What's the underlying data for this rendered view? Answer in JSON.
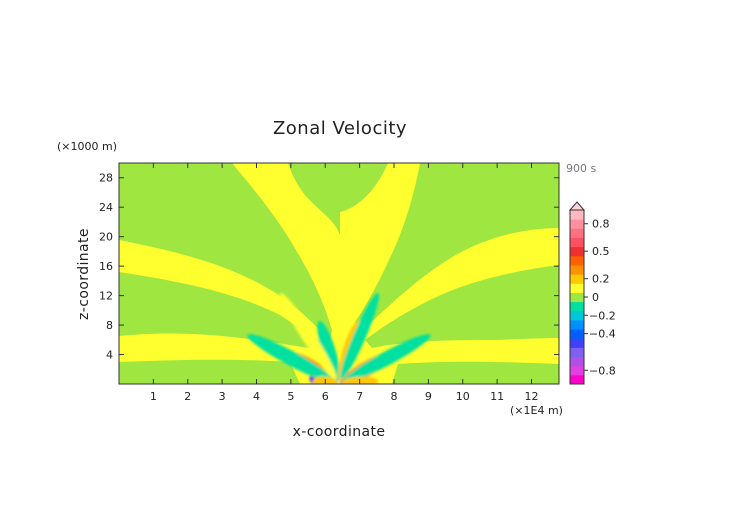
{
  "chart_data": {
    "type": "heatmap",
    "title": "Zonal Velocity",
    "time_label": "900 s",
    "xlabel": "x-coordinate",
    "ylabel": "z-coordinate",
    "x_multiplier": "(×1E4 m)",
    "y_multiplier": "(×1000 m)",
    "x_range": [
      0,
      12.8
    ],
    "y_range": [
      0,
      30
    ],
    "x_ticks": [
      1,
      2,
      3,
      4,
      5,
      6,
      7,
      8,
      9,
      10,
      11,
      12
    ],
    "y_ticks": [
      4,
      8,
      12,
      16,
      20,
      24,
      28
    ],
    "colorbar": {
      "levels": [
        -0.9,
        -0.8,
        -0.7,
        -0.6,
        -0.5,
        -0.4,
        -0.3,
        -0.2,
        -0.1,
        0,
        0.1,
        0.2,
        0.3,
        0.4,
        0.5,
        0.6,
        0.7,
        0.8,
        0.9
      ],
      "colors": [
        "#ff00cc",
        "#e040e0",
        "#b050e8",
        "#8060f0",
        "#4040ff",
        "#0060ff",
        "#0090ff",
        "#00c8d8",
        "#00e0a0",
        "#a0e640",
        "#ffff30",
        "#ffc800",
        "#ff9000",
        "#ff6000",
        "#f03030",
        "#ff5060",
        "#ff7080",
        "#ff90a0",
        "#ffb8c0"
      ],
      "tick_labels": [
        "-0.8",
        "-0.4",
        "-0.2",
        "0",
        "0.2",
        "0.5",
        "0.8"
      ],
      "tick_values": [
        -0.8,
        -0.4,
        -0.2,
        0,
        0.2,
        0.5,
        0.8
      ],
      "extend": "max"
    },
    "background_colors": {
      "positive_small": "#ffff30",
      "negative_small": "#a0e640"
    },
    "features": [
      {
        "x": 5.95,
        "y": 0.5,
        "value": -0.5
      },
      {
        "x": 6.8,
        "y": 0.5,
        "value": -0.4
      },
      {
        "x": 5.6,
        "y": 2.2,
        "value": 0.3
      },
      {
        "x": 7.25,
        "y": 2.2,
        "value": 0.3
      },
      {
        "x": 5.0,
        "y": 3.5,
        "value": -0.15
      },
      {
        "x": 7.8,
        "y": 3.5,
        "value": -0.15
      },
      {
        "x": 6.1,
        "y": 4.5,
        "value": -0.15
      },
      {
        "x": 6.7,
        "y": 4.5,
        "value": 0.2
      },
      {
        "x": 5.5,
        "y": 6.5,
        "value": 0.15
      },
      {
        "x": 7.0,
        "y": 6.5,
        "value": -0.15
      },
      {
        "x": 6.0,
        "y": 0.2,
        "value": 0.25
      },
      {
        "x": 7.0,
        "y": 0.2,
        "value": 0.2
      }
    ]
  }
}
